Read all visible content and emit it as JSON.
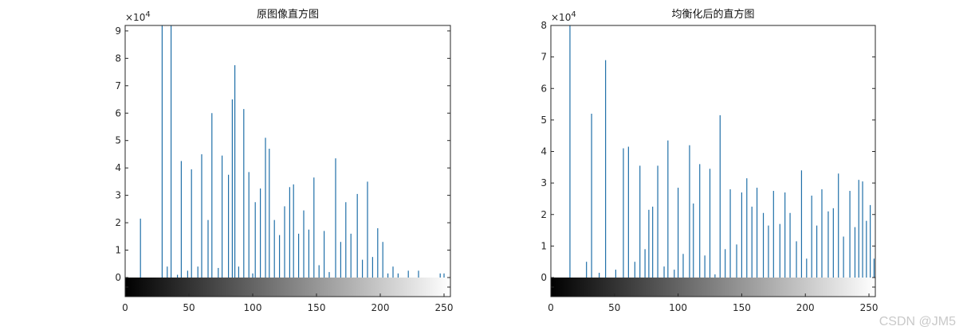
{
  "watermark": "CSDN @JM5",
  "chart_data": [
    {
      "type": "bar",
      "title": "原图像直方图",
      "exponent_label": "×10",
      "exponent_power": "4",
      "xlim": [
        0,
        255
      ],
      "ylim": [
        0,
        9.2
      ],
      "yticks": [
        0,
        1,
        2,
        3,
        4,
        5,
        6,
        7,
        8,
        9
      ],
      "xticks": [
        0,
        50,
        100,
        150,
        200,
        250
      ],
      "y_unit_multiplier": 10000,
      "colorbar": "gray-gradient",
      "bar_color": "#1f6fa8",
      "x": [
        12,
        29,
        33,
        36,
        41,
        44,
        49,
        52,
        57,
        60,
        65,
        68,
        73,
        76,
        81,
        84,
        86,
        89,
        93,
        97,
        100,
        102,
        106,
        110,
        113,
        117,
        121,
        125,
        129,
        132,
        136,
        140,
        144,
        148,
        152,
        156,
        160,
        165,
        169,
        173,
        177,
        182,
        186,
        190,
        194,
        198,
        202,
        206,
        210,
        214,
        222,
        230,
        247,
        250
      ],
      "values": [
        2.15,
        9.2,
        0.4,
        9.2,
        0.1,
        4.25,
        0.25,
        3.95,
        0.4,
        4.5,
        2.1,
        6.0,
        0.35,
        4.45,
        3.75,
        6.5,
        7.75,
        0.4,
        6.15,
        3.85,
        0.15,
        2.75,
        3.25,
        5.1,
        4.7,
        2.1,
        1.55,
        2.6,
        3.3,
        3.4,
        1.6,
        2.45,
        1.75,
        3.65,
        0.45,
        1.7,
        0.2,
        4.35,
        1.3,
        2.75,
        1.6,
        3.05,
        0.65,
        3.5,
        0.75,
        1.8,
        1.3,
        0.15,
        0.4,
        0.15,
        0.25,
        0.25,
        0.15,
        0.15
      ]
    },
    {
      "type": "bar",
      "title": "均衡化后的直方图",
      "exponent_label": "×10",
      "exponent_power": "4",
      "xlim": [
        0,
        255
      ],
      "ylim": [
        0,
        8
      ],
      "yticks": [
        0,
        1,
        2,
        3,
        4,
        5,
        6,
        7,
        8
      ],
      "xticks": [
        0,
        50,
        100,
        150,
        200,
        250
      ],
      "y_unit_multiplier": 10000,
      "colorbar": "gray-gradient",
      "bar_color": "#1f6fa8",
      "x": [
        15,
        28,
        32,
        38,
        43,
        51,
        57,
        61,
        66,
        70,
        74,
        77,
        80,
        84,
        89,
        92,
        97,
        100,
        104,
        109,
        112,
        117,
        121,
        125,
        129,
        133,
        137,
        141,
        146,
        150,
        154,
        158,
        162,
        167,
        171,
        175,
        180,
        184,
        188,
        193,
        197,
        201,
        205,
        209,
        213,
        218,
        222,
        226,
        230,
        235,
        239,
        242,
        245,
        248,
        251,
        254
      ],
      "values": [
        8.0,
        0.5,
        5.2,
        0.15,
        6.9,
        0.25,
        4.1,
        4.15,
        0.5,
        3.55,
        0.9,
        2.15,
        2.25,
        3.55,
        0.35,
        4.35,
        0.25,
        2.85,
        0.75,
        4.2,
        2.35,
        3.6,
        0.7,
        3.45,
        0.1,
        5.15,
        0.9,
        2.8,
        1.05,
        2.7,
        3.15,
        2.25,
        2.85,
        2.05,
        1.65,
        2.75,
        1.7,
        2.7,
        2.05,
        1.15,
        3.4,
        0.6,
        2.6,
        1.65,
        2.8,
        2.1,
        2.2,
        3.3,
        1.3,
        2.75,
        1.6,
        3.1,
        3.05,
        1.8,
        2.3,
        0.6
      ]
    }
  ]
}
